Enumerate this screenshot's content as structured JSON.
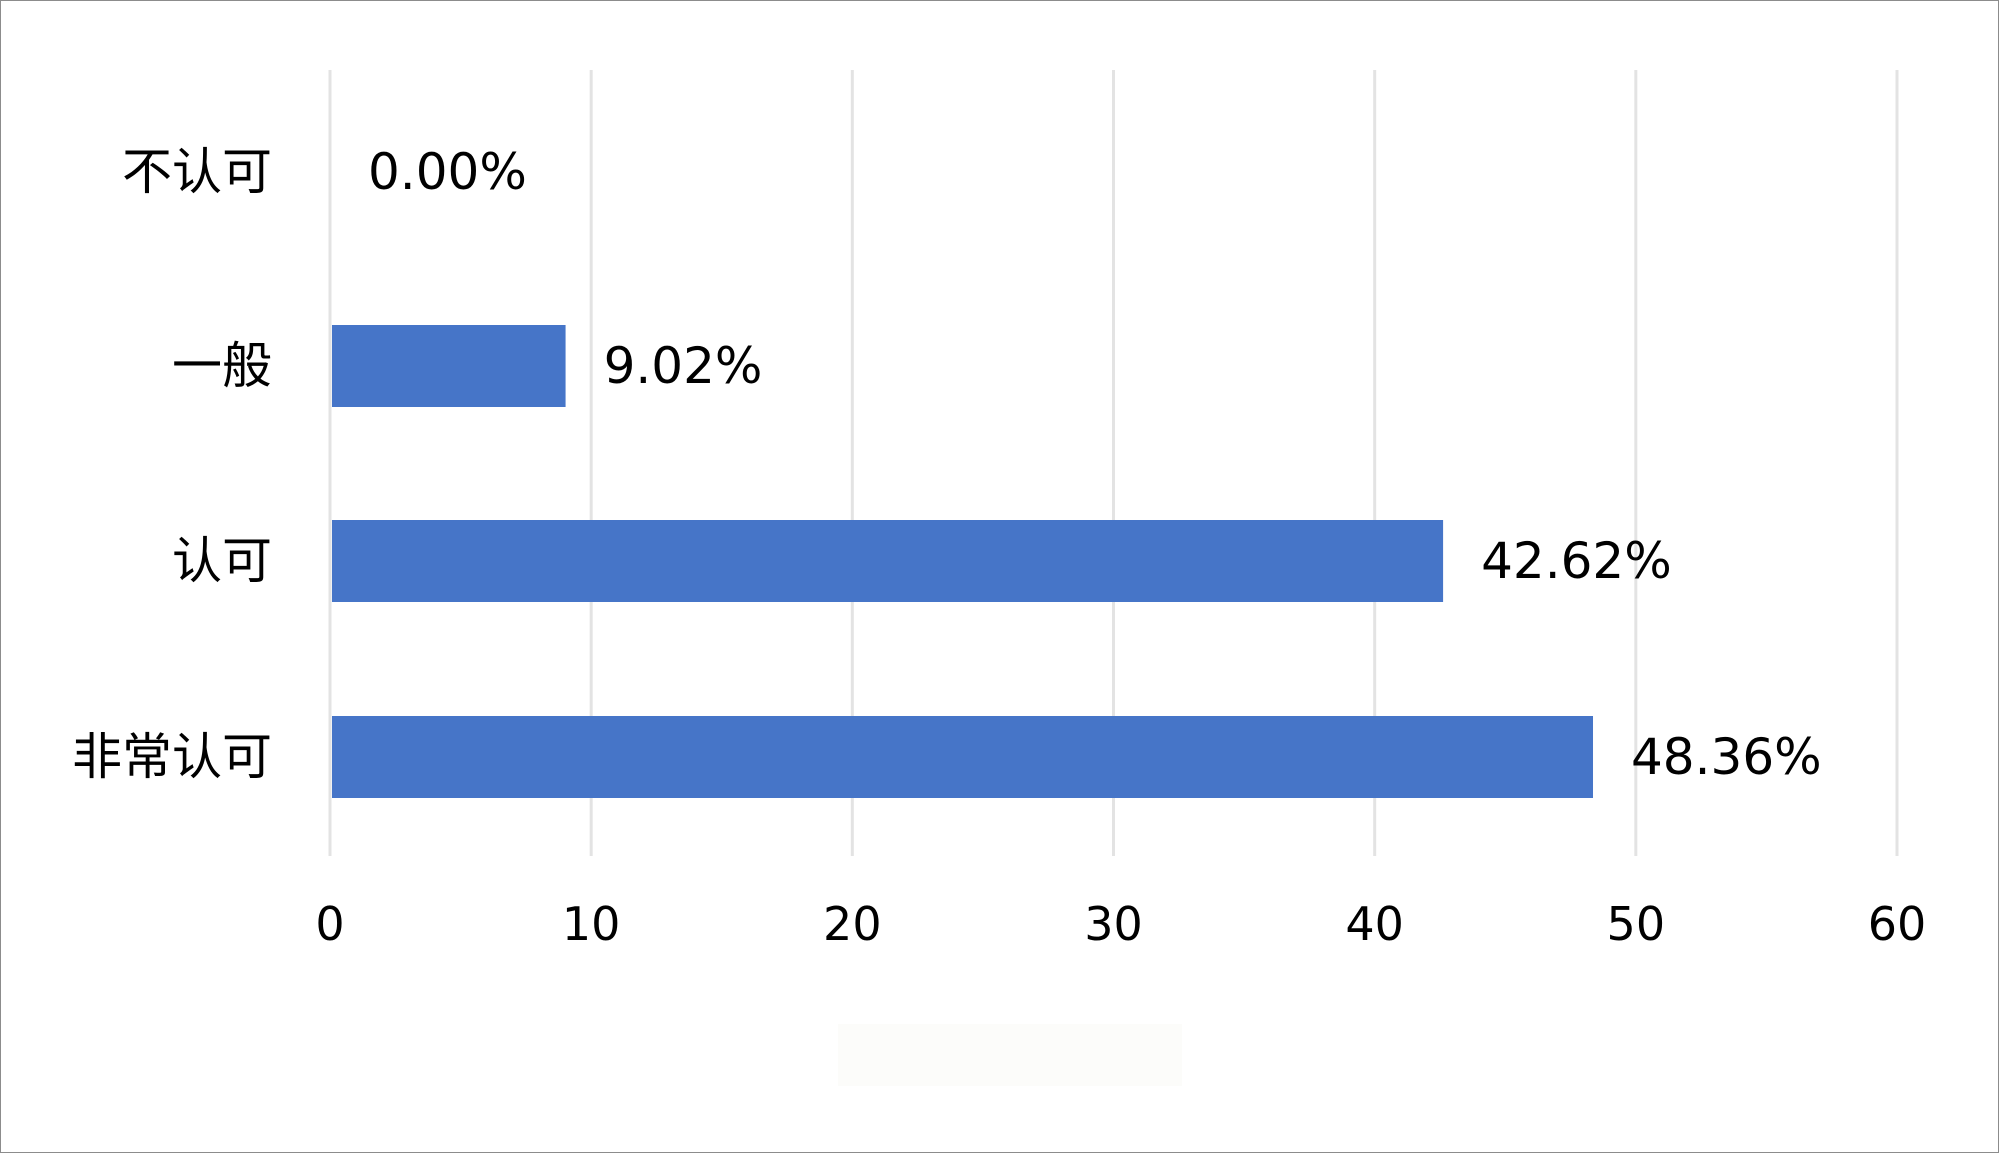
{
  "chart_data": {
    "type": "bar",
    "orientation": "horizontal",
    "categories": [
      "不认可",
      "一般",
      "认可",
      "非常认可"
    ],
    "values": [
      0.0,
      9.02,
      42.62,
      48.36
    ],
    "data_labels": [
      "0.00%",
      "9.02%",
      "42.62%",
      "48.36%"
    ],
    "x_ticks": [
      "0",
      "10",
      "20",
      "30",
      "40",
      "50",
      "60"
    ],
    "xlim": [
      0,
      60
    ],
    "grid": "vertical",
    "legend": "none",
    "colors": {
      "bar": "#4675c8",
      "grid": "#e3e3e3",
      "text": "#000000",
      "frame": "#8c8c8c"
    }
  }
}
